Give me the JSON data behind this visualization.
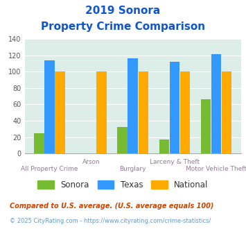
{
  "title_line1": "2019 Sonora",
  "title_line2": "Property Crime Comparison",
  "categories": [
    "All Property Crime",
    "Arson",
    "Burglary",
    "Larceny & Theft",
    "Motor Vehicle Theft"
  ],
  "sonora": [
    25,
    0,
    32,
    17,
    66
  ],
  "texas": [
    114,
    0,
    116,
    112,
    121
  ],
  "national": [
    100,
    100,
    100,
    100,
    100
  ],
  "bar_color_sonora": "#77bb33",
  "bar_color_texas": "#3399ff",
  "bar_color_national": "#ffaa00",
  "background_color": "#ddeee8",
  "ylim": [
    0,
    140
  ],
  "yticks": [
    0,
    20,
    40,
    60,
    80,
    100,
    120,
    140
  ],
  "title_color": "#1155cc",
  "xlabel_color": "#997799",
  "legend_labels": [
    "Sonora",
    "Texas",
    "National"
  ],
  "footnote1": "Compared to U.S. average. (U.S. average equals 100)",
  "footnote2": "© 2025 CityRating.com - https://www.cityrating.com/crime-statistics/",
  "footnote1_color": "#cc4400",
  "footnote2_color": "#6699cc",
  "label_row1_indices": [
    1,
    3
  ],
  "label_row2_indices": [
    0,
    2,
    4
  ]
}
